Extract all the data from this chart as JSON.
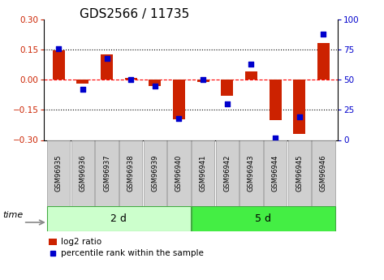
{
  "title": "GDS2566 / 11735",
  "samples": [
    "GSM96935",
    "GSM96936",
    "GSM96937",
    "GSM96938",
    "GSM96939",
    "GSM96940",
    "GSM96941",
    "GSM96942",
    "GSM96943",
    "GSM96944",
    "GSM96945",
    "GSM96946"
  ],
  "log2_ratio": [
    0.145,
    -0.02,
    0.125,
    0.01,
    -0.03,
    -0.195,
    -0.01,
    -0.08,
    0.04,
    -0.2,
    -0.27,
    0.185
  ],
  "percentile_rank": [
    76,
    42,
    68,
    50,
    45,
    18,
    50,
    30,
    63,
    2,
    19,
    88
  ],
  "bar_color": "#cc2200",
  "dot_color": "#0000cc",
  "left_ylim": [
    -0.3,
    0.3
  ],
  "right_ylim": [
    0,
    100
  ],
  "yticks_left": [
    -0.3,
    -0.15,
    0.0,
    0.15,
    0.3
  ],
  "yticks_right": [
    0,
    25,
    50,
    75,
    100
  ],
  "hlines": [
    0.15,
    0.0,
    -0.15
  ],
  "hline_styles": [
    "dotted",
    "dashed",
    "dotted"
  ],
  "hline_colors": [
    "black",
    "red",
    "black"
  ],
  "groups": [
    {
      "label": "2 d",
      "start": 0,
      "end": 5,
      "color": "#ccffcc"
    },
    {
      "label": "5 d",
      "start": 6,
      "end": 11,
      "color": "#44ee44"
    }
  ],
  "group_border_color": "#44aa44",
  "time_label": "time",
  "legend_bar_label": "log2 ratio",
  "legend_dot_label": "percentile rank within the sample",
  "bar_width": 0.5,
  "dot_size": 25,
  "background_color": "#ffffff",
  "plot_bg_color": "#ffffff",
  "sample_box_color": "#d0d0d0",
  "sample_box_edge": "#999999",
  "label_fontsize": 9,
  "tick_fontsize": 7.5,
  "sample_fontsize": 6,
  "group_fontsize": 9,
  "title_fontsize": 11
}
